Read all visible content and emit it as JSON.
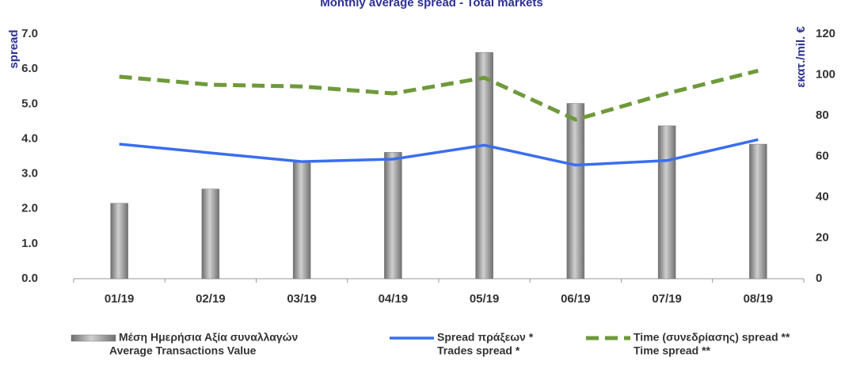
{
  "chart_data": {
    "type": "bar-line",
    "title": "Monthly average spread - Total markets",
    "ylabel": "spread",
    "y2label": "εκατ./mil. €",
    "categories": [
      "01/19",
      "02/19",
      "03/19",
      "04/19",
      "05/19",
      "06/19",
      "07/19",
      "08/19"
    ],
    "ylim": [
      0,
      7
    ],
    "yticks": [
      {
        "value": 0,
        "label": "0.0"
      },
      {
        "value": 1,
        "label": "1.0"
      },
      {
        "value": 2,
        "label": "2.0"
      },
      {
        "value": 3,
        "label": "3.0"
      },
      {
        "value": 4,
        "label": "4.0"
      },
      {
        "value": 5,
        "label": "5.0"
      },
      {
        "value": 6,
        "label": "6.0"
      },
      {
        "value": 7,
        "label": "7.0"
      }
    ],
    "y2lim": [
      0,
      120
    ],
    "y2ticks": [
      0,
      20,
      40,
      60,
      80,
      100,
      120
    ],
    "series": [
      {
        "name": "Μέση Ημερήσια Αξία συναλλαγών",
        "subname": "Average Transactions Value",
        "type": "bar",
        "axis": "y2",
        "color": "#8c8c8c",
        "values": [
          37,
          44,
          57,
          62,
          111,
          86,
          75,
          66
        ]
      },
      {
        "name": "Spread πράξεων *",
        "subname": "Trades spread *",
        "type": "line",
        "color": "#3a6ef0",
        "values": [
          3.85,
          3.6,
          3.35,
          3.42,
          3.82,
          3.25,
          3.38,
          3.98
        ]
      },
      {
        "name": "Time  (συνεδρίασης) spread **",
        "subname": "Time spread **",
        "type": "dashed",
        "color": "#6e9a3a",
        "values": [
          5.78,
          5.55,
          5.5,
          5.3,
          5.75,
          4.55,
          5.3,
          5.95
        ]
      }
    ]
  }
}
